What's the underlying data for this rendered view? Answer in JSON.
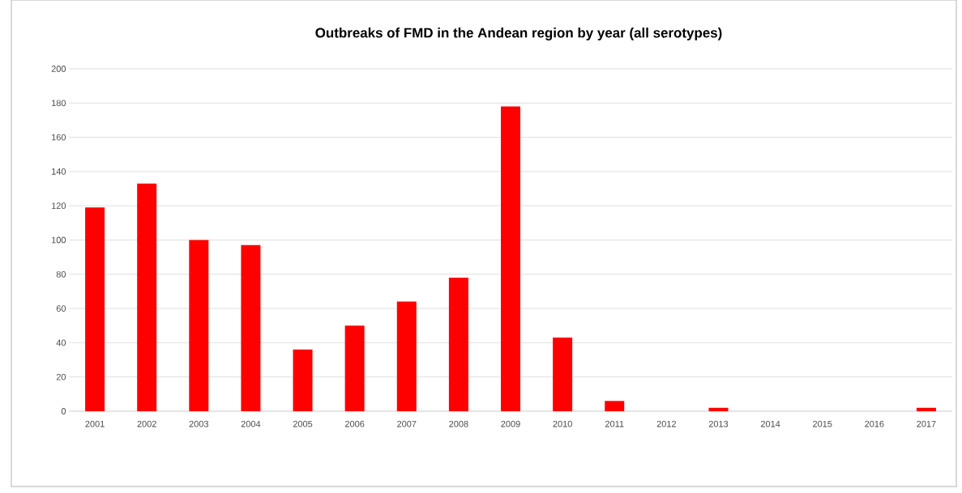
{
  "chart_data": {
    "type": "bar",
    "title": "Outbreaks of FMD in the Andean  region by year (all serotypes)",
    "categories": [
      "2001",
      "2002",
      "2003",
      "2004",
      "2005",
      "2006",
      "2007",
      "2008",
      "2009",
      "2010",
      "2011",
      "2012",
      "2013",
      "2014",
      "2015",
      "2016",
      "2017"
    ],
    "values": [
      119,
      133,
      100,
      97,
      36,
      50,
      64,
      78,
      178,
      43,
      6,
      0,
      2,
      0,
      0,
      0,
      2
    ],
    "color": "#ff0000",
    "ylim": [
      0,
      200
    ],
    "yticks": [
      0,
      20,
      40,
      60,
      80,
      100,
      120,
      140,
      160,
      180,
      200
    ],
    "grid": "y"
  }
}
